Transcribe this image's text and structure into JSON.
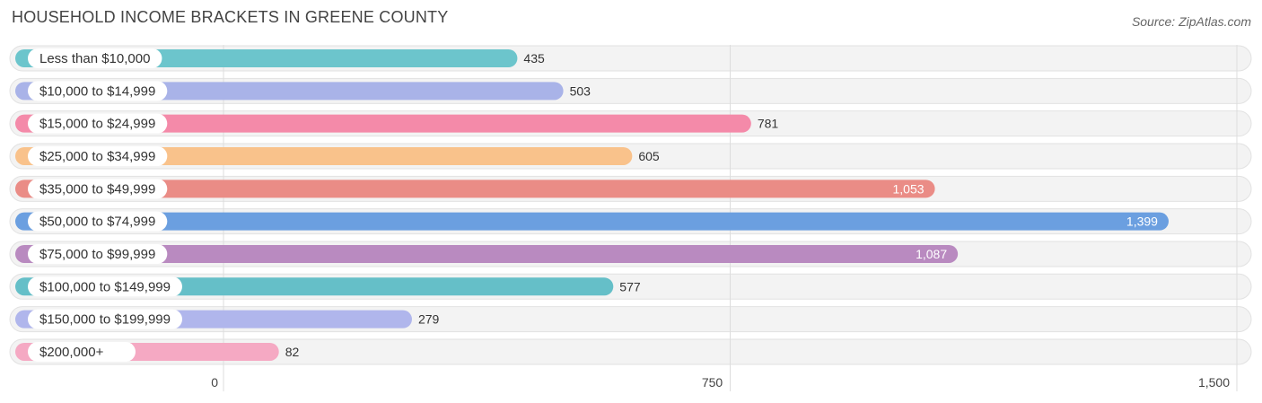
{
  "header": {
    "title": "HOUSEHOLD INCOME BRACKETS IN GREENE COUNTY",
    "source": "Source: ZipAtlas.com"
  },
  "chart_data": {
    "type": "bar",
    "orientation": "horizontal",
    "title": "HOUSEHOLD INCOME BRACKETS IN GREENE COUNTY",
    "xlabel": "",
    "ylabel": "",
    "xlim": [
      0,
      1500
    ],
    "grid": true,
    "categories": [
      "Less than $10,000",
      "$10,000 to $14,999",
      "$15,000 to $24,999",
      "$25,000 to $34,999",
      "$35,000 to $49,999",
      "$50,000 to $74,999",
      "$75,000 to $99,999",
      "$100,000 to $149,999",
      "$150,000 to $199,999",
      "$200,000+"
    ],
    "values": [
      435,
      503,
      781,
      605,
      1053,
      1399,
      1087,
      577,
      279,
      82
    ],
    "value_labels": [
      "435",
      "503",
      "781",
      "605",
      "1,053",
      "1,399",
      "1,087",
      "577",
      "279",
      "82"
    ],
    "colors": [
      "#6cc5cc",
      "#a9b3e8",
      "#f48aa9",
      "#f9c28b",
      "#ea8c86",
      "#6b9fe0",
      "#b98ac0",
      "#65bfc8",
      "#b0b6ec",
      "#f5a9c3"
    ],
    "ticks": [
      {
        "value": 0,
        "label": "0"
      },
      {
        "value": 750,
        "label": "750"
      },
      {
        "value": 1500,
        "label": "1,500"
      }
    ]
  }
}
